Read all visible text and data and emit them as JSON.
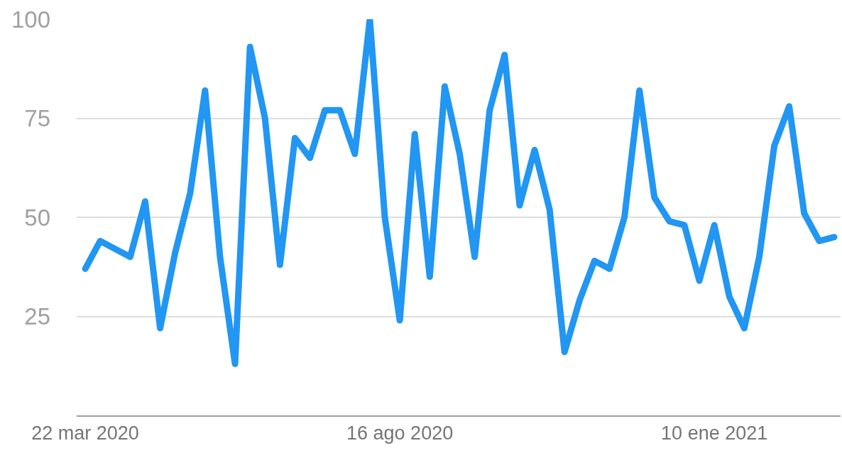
{
  "chart_data": {
    "type": "line",
    "x": [
      "2020-03-22",
      "2020-03-29",
      "2020-04-05",
      "2020-04-12",
      "2020-04-19",
      "2020-04-26",
      "2020-05-03",
      "2020-05-10",
      "2020-05-17",
      "2020-05-24",
      "2020-05-31",
      "2020-06-07",
      "2020-06-14",
      "2020-06-21",
      "2020-06-28",
      "2020-07-05",
      "2020-07-12",
      "2020-07-19",
      "2020-07-26",
      "2020-08-02",
      "2020-08-09",
      "2020-08-16",
      "2020-08-23",
      "2020-08-30",
      "2020-09-06",
      "2020-09-13",
      "2020-09-20",
      "2020-09-27",
      "2020-10-04",
      "2020-10-11",
      "2020-10-18",
      "2020-10-25",
      "2020-11-01",
      "2020-11-08",
      "2020-11-15",
      "2020-11-22",
      "2020-11-29",
      "2020-12-06",
      "2020-12-13",
      "2020-12-20",
      "2020-12-27",
      "2021-01-03",
      "2021-01-10",
      "2021-01-17",
      "2021-01-24",
      "2021-01-31",
      "2021-02-07",
      "2021-02-14",
      "2021-02-21",
      "2021-02-28",
      "2021-03-07"
    ],
    "series": [
      {
        "color": "#2196f3",
        "values": [
          37,
          44,
          42,
          40,
          54,
          22,
          41,
          56,
          82,
          40,
          13,
          93,
          75,
          38,
          70,
          65,
          77,
          77,
          66,
          100,
          50,
          24,
          71,
          35,
          83,
          66,
          40,
          77,
          91,
          53,
          67,
          52,
          16,
          29,
          39,
          37,
          50,
          82,
          55,
          49,
          48,
          34,
          48,
          30,
          22,
          40,
          68,
          78,
          51,
          44,
          45
        ]
      }
    ],
    "xlim": [
      "2020-03-18",
      "2021-03-10"
    ],
    "xticks": [
      {
        "value": "2020-03-22",
        "label": "22 mar 2020"
      },
      {
        "value": "2020-08-16",
        "label": "16 ago 2020"
      },
      {
        "value": "2021-01-10",
        "label": "10 ene 2021"
      }
    ],
    "ylim": [
      0,
      100
    ],
    "yticks": [
      25,
      50,
      75,
      100
    ],
    "grid": "y",
    "marker": "none",
    "line_style": "solid"
  }
}
